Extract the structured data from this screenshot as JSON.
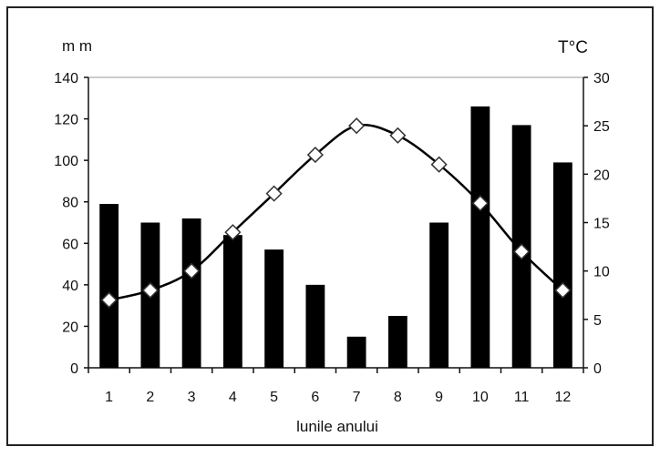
{
  "chart_data": {
    "type": "bar",
    "title": "",
    "xlabel": "lunile anului",
    "ylabel_left": "m m",
    "ylabel_right": "T°C",
    "categories": [
      "1",
      "2",
      "3",
      "4",
      "5",
      "6",
      "7",
      "8",
      "9",
      "10",
      "11",
      "12"
    ],
    "y_left": {
      "min": 0,
      "max": 140,
      "ticks": [
        "0",
        "20",
        "40",
        "60",
        "80",
        "100",
        "120",
        "140"
      ]
    },
    "y_right": {
      "min": 0,
      "max": 30,
      "ticks": [
        "0",
        "5",
        "10",
        "15",
        "20",
        "25",
        "30"
      ]
    },
    "series": [
      {
        "kind": "bar",
        "axis": "left",
        "values": [
          79,
          70,
          72,
          64,
          57,
          40,
          15,
          25,
          70,
          126,
          117,
          99
        ]
      },
      {
        "kind": "line",
        "axis": "right",
        "marker": "diamond",
        "values": [
          7,
          8,
          10,
          14,
          18,
          22,
          25,
          24,
          21,
          17,
          12,
          8
        ]
      }
    ],
    "colors": {
      "bars": "#000000",
      "line": "#000000",
      "marker_fill": "#ffffff"
    }
  }
}
